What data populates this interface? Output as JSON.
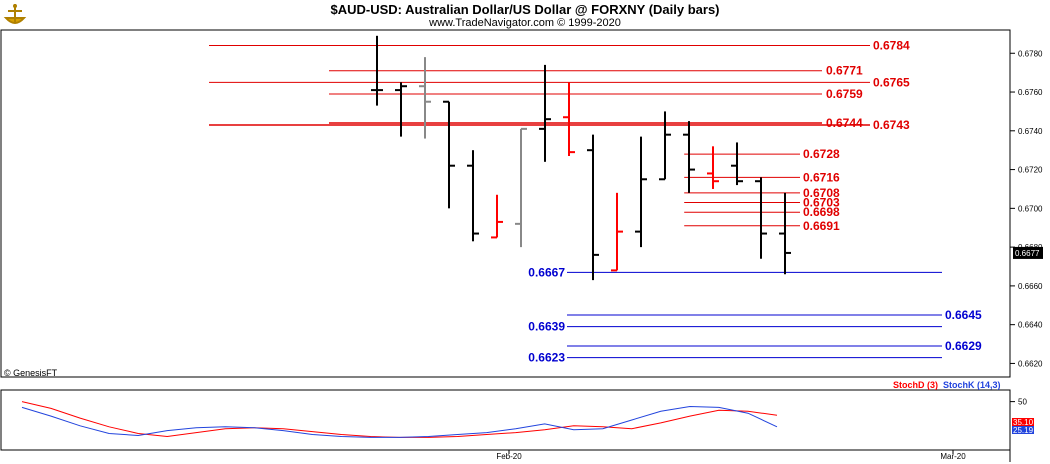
{
  "header": {
    "title": "$AUD-USD:  Australian Dollar/US Dollar @ FORXNY  (Daily bars)",
    "subtitle": "www.TradeNavigator.com © 1999-2020",
    "copyright": "© GenesisFT",
    "logo_icon": "trade-navigator-ship-icon"
  },
  "colors": {
    "resistance": "#e00000",
    "support": "#0000d0",
    "bar_black": "#000000",
    "bar_red": "#ff0000",
    "bar_gray": "#888888",
    "stoch_d": "#ff0000",
    "stoch_k": "#2244dd"
  },
  "chart_data": [
    {
      "type": "ohlc",
      "title": "$AUD-USD:  Australian Dollar/US Dollar @ FORXNY  (Daily bars)",
      "ylim": [
        0.6613,
        0.6792
      ],
      "y_ticks": [
        "0.6780",
        "0.6760",
        "0.6740",
        "0.6720",
        "0.6700",
        "0.6680",
        "0.6660",
        "0.6640",
        "0.6620"
      ],
      "x_labels": [
        {
          "label": "Feb-20",
          "index": 5.5
        },
        {
          "label": "Mar-20",
          "index": 24
        }
      ],
      "last_price": "0.6677",
      "bars": [
        {
          "o": 0.6761,
          "h": 0.6789,
          "l": 0.6753,
          "c": 0.6761,
          "color": "black"
        },
        {
          "o": 0.6761,
          "h": 0.6765,
          "l": 0.6737,
          "c": 0.6763,
          "color": "black"
        },
        {
          "o": 0.6763,
          "h": 0.6778,
          "l": 0.6736,
          "c": 0.6755,
          "color": "gray"
        },
        {
          "o": 0.6755,
          "h": 0.6755,
          "l": 0.67,
          "c": 0.6722,
          "color": "black"
        },
        {
          "o": 0.6722,
          "h": 0.673,
          "l": 0.6683,
          "c": 0.6687,
          "color": "black"
        },
        {
          "o": 0.6685,
          "h": 0.6707,
          "l": 0.6685,
          "c": 0.6693,
          "color": "red"
        },
        {
          "o": 0.6692,
          "h": 0.6741,
          "l": 0.668,
          "c": 0.6741,
          "color": "gray"
        },
        {
          "o": 0.6741,
          "h": 0.6774,
          "l": 0.6724,
          "c": 0.6746,
          "color": "black"
        },
        {
          "o": 0.6747,
          "h": 0.6765,
          "l": 0.6727,
          "c": 0.6729,
          "color": "red"
        },
        {
          "o": 0.673,
          "h": 0.6738,
          "l": 0.6663,
          "c": 0.6676,
          "color": "black"
        },
        {
          "o": 0.6668,
          "h": 0.6708,
          "l": 0.6668,
          "c": 0.6688,
          "color": "red"
        },
        {
          "o": 0.6688,
          "h": 0.6737,
          "l": 0.668,
          "c": 0.6715,
          "color": "black"
        },
        {
          "o": 0.6715,
          "h": 0.675,
          "l": 0.6715,
          "c": 0.6738,
          "color": "black"
        },
        {
          "o": 0.6738,
          "h": 0.6745,
          "l": 0.6708,
          "c": 0.672,
          "color": "black"
        },
        {
          "o": 0.6718,
          "h": 0.6732,
          "l": 0.671,
          "c": 0.6714,
          "color": "red"
        },
        {
          "o": 0.6722,
          "h": 0.6734,
          "l": 0.6712,
          "c": 0.6714,
          "color": "black"
        },
        {
          "o": 0.6714,
          "h": 0.6716,
          "l": 0.6674,
          "c": 0.6687,
          "color": "black"
        },
        {
          "o": 0.6687,
          "h": 0.6708,
          "l": 0.6666,
          "c": 0.6677,
          "color": "black"
        }
      ],
      "resistance_levels": [
        {
          "value": 0.6784,
          "label": "0.6784",
          "from": -7.0
        },
        {
          "value": 0.6771,
          "label": "0.6771",
          "from": -2.0
        },
        {
          "value": 0.6765,
          "label": "0.6765",
          "from": -7.0
        },
        {
          "value": 0.6759,
          "label": "0.6759",
          "from": -2.0
        },
        {
          "value": 0.6744,
          "label": "0.6744",
          "from": -2.0
        },
        {
          "value": 0.6743,
          "label": "0.6743",
          "from": -7.0
        },
        {
          "value": 0.6728,
          "label": "0.6728",
          "from": 12.8
        },
        {
          "value": 0.6716,
          "label": "0.6716",
          "from": 12.8
        },
        {
          "value": 0.6708,
          "label": "0.6708",
          "from": 12.8
        },
        {
          "value": 0.6703,
          "label": "0.6703",
          "from": 12.8
        },
        {
          "value": 0.6698,
          "label": "0.6698",
          "from": 12.8
        },
        {
          "value": 0.6691,
          "label": "0.6691",
          "from": 12.8
        }
      ],
      "support_levels": [
        {
          "value": 0.6667,
          "label": "0.6667",
          "label_side": "left"
        },
        {
          "value": 0.6645,
          "label": "0.6645",
          "label_side": "right"
        },
        {
          "value": 0.6639,
          "label": "0.6639",
          "label_side": "left"
        },
        {
          "value": 0.6629,
          "label": "0.6629",
          "label_side": "right"
        },
        {
          "value": 0.6623,
          "label": "0.6623",
          "label_side": "left"
        }
      ]
    },
    {
      "type": "line",
      "series": [
        {
          "name": "StochD (3)",
          "values": [
            50,
            43,
            33,
            24,
            17,
            14,
            18,
            22,
            23,
            22,
            19,
            16,
            14,
            13,
            13,
            14,
            16,
            18,
            21,
            25,
            24,
            22,
            28,
            35,
            41,
            40,
            36
          ]
        },
        {
          "name": "StochK (14,3)",
          "values": [
            44,
            35,
            25,
            17,
            15,
            20,
            23,
            24,
            23,
            20,
            16,
            14,
            13,
            13,
            14,
            16,
            18,
            22,
            27,
            21,
            22,
            31,
            40,
            45,
            44,
            38,
            24
          ]
        }
      ],
      "ylim": [
        0,
        62
      ],
      "y_ticks": [
        "50"
      ],
      "value_labels": [
        "35.10",
        "25.19"
      ]
    }
  ]
}
